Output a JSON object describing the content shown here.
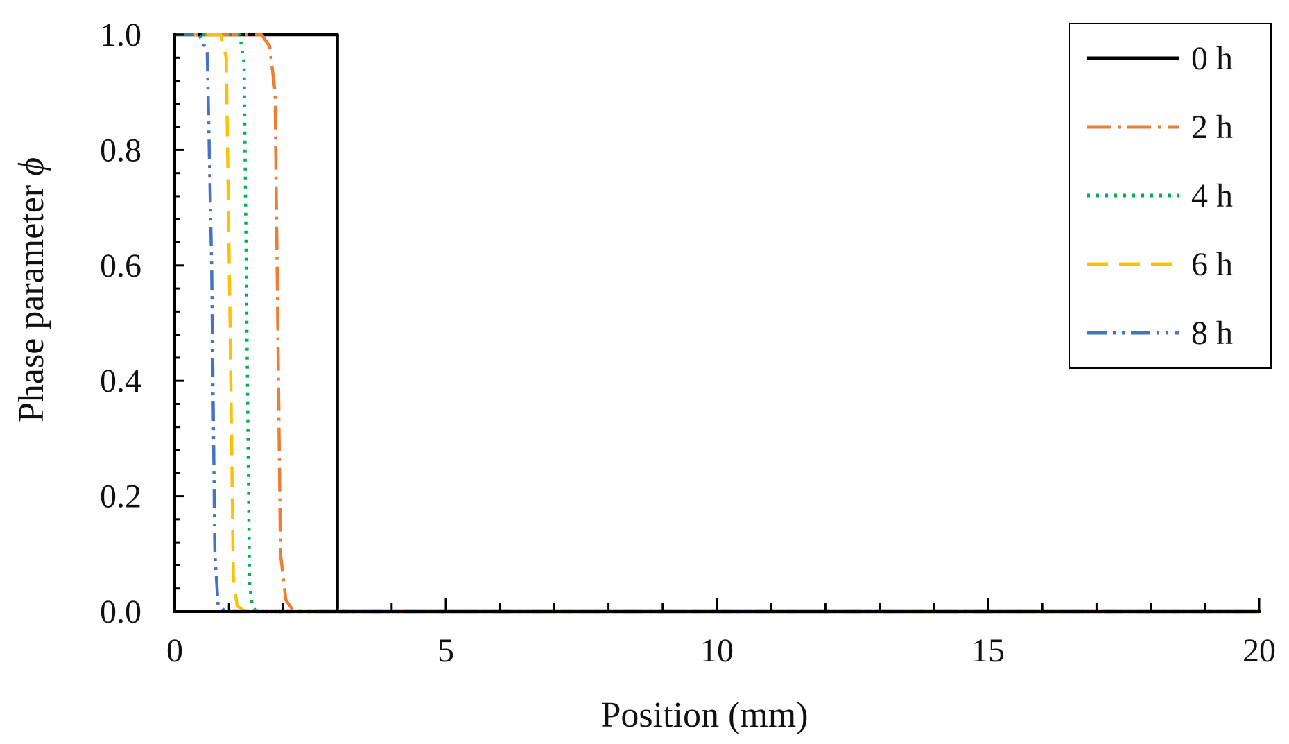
{
  "chart_data": {
    "type": "line",
    "title": "",
    "xlabel": "Position (mm)",
    "ylabel": "Phase parameter ",
    "ylabel_symbol": "ϕ",
    "xlim": [
      0,
      20
    ],
    "ylim": [
      0,
      1.0
    ],
    "x_ticks": [
      0,
      5,
      10,
      15,
      20
    ],
    "x_tick_labels": [
      "0",
      "5",
      "10",
      "15",
      "20"
    ],
    "y_ticks": [
      0,
      0.2,
      0.4,
      0.6,
      0.8,
      1.0
    ],
    "y_tick_labels": [
      "0.0",
      "0.2",
      "0.4",
      "0.6",
      "0.8",
      "1.0"
    ],
    "grid": false,
    "legend_position": "top-right",
    "series": [
      {
        "name": "0 h",
        "color": "#000000",
        "dash": "solid",
        "x": [
          0,
          3.0,
          3.0,
          20
        ],
        "y": [
          1.0,
          1.0,
          0.0,
          0.0
        ]
      },
      {
        "name": "2 h",
        "color": "#ED7D31",
        "dash": "dashdot",
        "x": [
          0,
          1.6,
          1.75,
          1.85,
          1.9,
          1.95,
          2.05,
          2.2,
          20
        ],
        "y": [
          1.0,
          1.0,
          0.98,
          0.9,
          0.5,
          0.1,
          0.02,
          0.0,
          0.0
        ]
      },
      {
        "name": "4 h",
        "color": "#00B050",
        "dash": "dotted",
        "x": [
          0,
          1.2,
          1.28,
          1.33,
          1.38,
          1.43,
          1.5,
          20
        ],
        "y": [
          1.0,
          1.0,
          0.95,
          0.5,
          0.05,
          0.01,
          0.0,
          0.0
        ]
      },
      {
        "name": "6 h",
        "color": "#FFC000",
        "dash": "dashed",
        "x": [
          0,
          0.85,
          0.95,
          1.02,
          1.08,
          1.15,
          1.3,
          20
        ],
        "y": [
          1.0,
          1.0,
          0.96,
          0.5,
          0.06,
          0.01,
          0.0,
          0.0
        ]
      },
      {
        "name": "8 h",
        "color": "#4472C4",
        "dash": "dashdotdot",
        "x": [
          0,
          0.45,
          0.6,
          0.68,
          0.74,
          0.8,
          0.95,
          20
        ],
        "y": [
          1.0,
          1.0,
          0.97,
          0.6,
          0.1,
          0.01,
          0.0,
          0.0
        ]
      }
    ]
  }
}
